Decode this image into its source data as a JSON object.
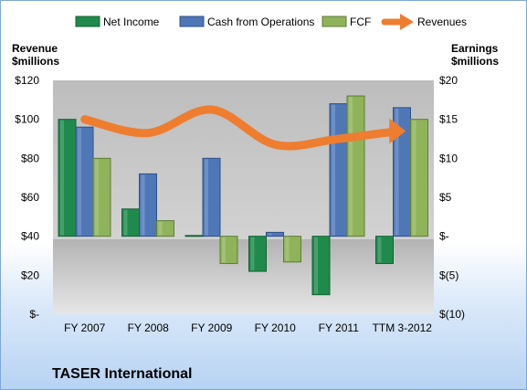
{
  "chart_data": {
    "type": "bar",
    "title": "TASER International",
    "categories": [
      "FY 2007",
      "FY 2008",
      "FY 2009",
      "FY 2010",
      "FY 2011",
      "TTM 3-2012"
    ],
    "series": [
      {
        "name": "Net Income",
        "axis": "right",
        "values": [
          15,
          3.5,
          0.1,
          -4.5,
          -7.5,
          -3.5
        ],
        "color": "#1f8a4c"
      },
      {
        "name": "Cash from Operations",
        "axis": "right",
        "values": [
          14,
          8,
          10,
          0.5,
          17,
          16.5
        ],
        "color": "#4f77b8"
      },
      {
        "name": "FCF",
        "axis": "right",
        "values": [
          10,
          2,
          -3.5,
          -3.3,
          18,
          15
        ],
        "color": "#8fb35a"
      },
      {
        "name": "Revenues",
        "axis": "left",
        "type": "line",
        "values": [
          100,
          93,
          105,
          87,
          90,
          94
        ],
        "color": "#ee7d30"
      }
    ],
    "left_axis": {
      "title_line1": "Revenue",
      "title_line2": "$millions",
      "min": 0,
      "max": 120,
      "ticks": [
        "$-",
        "$20",
        "$40",
        "$60",
        "$80",
        "$100",
        "$120"
      ]
    },
    "right_axis": {
      "title_line1": "Earnings",
      "title_line2": "$millions",
      "min": -10,
      "max": 20,
      "ticks": [
        "$(10)",
        "$(5)",
        "$-",
        "$5",
        "$10",
        "$15",
        "$20"
      ]
    },
    "legend_position": "top",
    "grid": false
  }
}
